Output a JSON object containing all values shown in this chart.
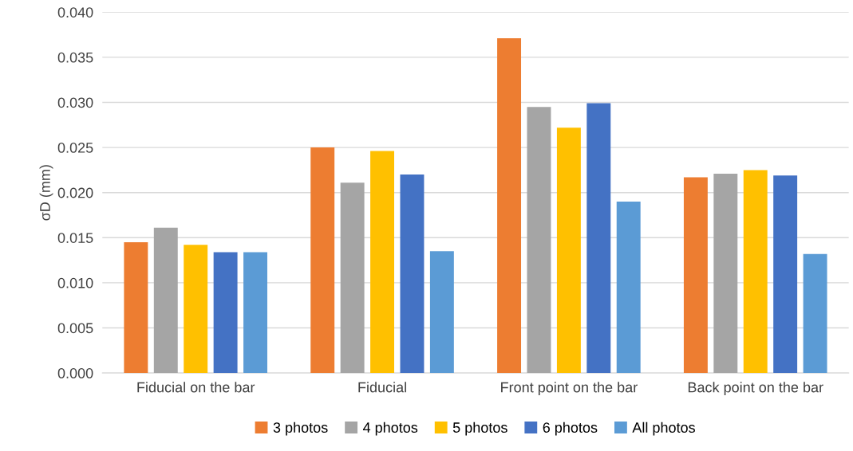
{
  "chart_data": {
    "type": "bar",
    "ylabel": "σD (mm)",
    "categories": [
      "Fiducial on the bar",
      "Fiducial",
      "Front point on the bar",
      "Back point on the bar"
    ],
    "series": [
      {
        "name": "3 photos",
        "color": "#ed7d31",
        "values": [
          0.0145,
          0.025,
          0.0371,
          0.0217
        ]
      },
      {
        "name": "4 photos",
        "color": "#a5a5a5",
        "values": [
          0.0161,
          0.0211,
          0.0295,
          0.0221
        ]
      },
      {
        "name": "5 photos",
        "color": "#ffc000",
        "values": [
          0.0142,
          0.0246,
          0.0272,
          0.0225
        ]
      },
      {
        "name": "6 photos",
        "color": "#4472c4",
        "values": [
          0.0134,
          0.022,
          0.0299,
          0.0219
        ]
      },
      {
        "name": "All photos",
        "color": "#5b9bd5",
        "values": [
          0.0134,
          0.0135,
          0.019,
          0.0132
        ]
      }
    ],
    "ylim": [
      0,
      0.04
    ],
    "yticks": [
      {
        "value": 0,
        "label": "0.000"
      },
      {
        "value": 0.005,
        "label": "0.005"
      },
      {
        "value": 0.01,
        "label": "0.010"
      },
      {
        "value": 0.015,
        "label": "0.015"
      },
      {
        "value": 0.02,
        "label": "0.020"
      },
      {
        "value": 0.025,
        "label": "0.025"
      },
      {
        "value": 0.03,
        "label": "0.030"
      },
      {
        "value": 0.035,
        "label": "0.035"
      },
      {
        "value": 0.04,
        "label": "0.040"
      }
    ],
    "grid": "y",
    "legend": "bottom"
  }
}
